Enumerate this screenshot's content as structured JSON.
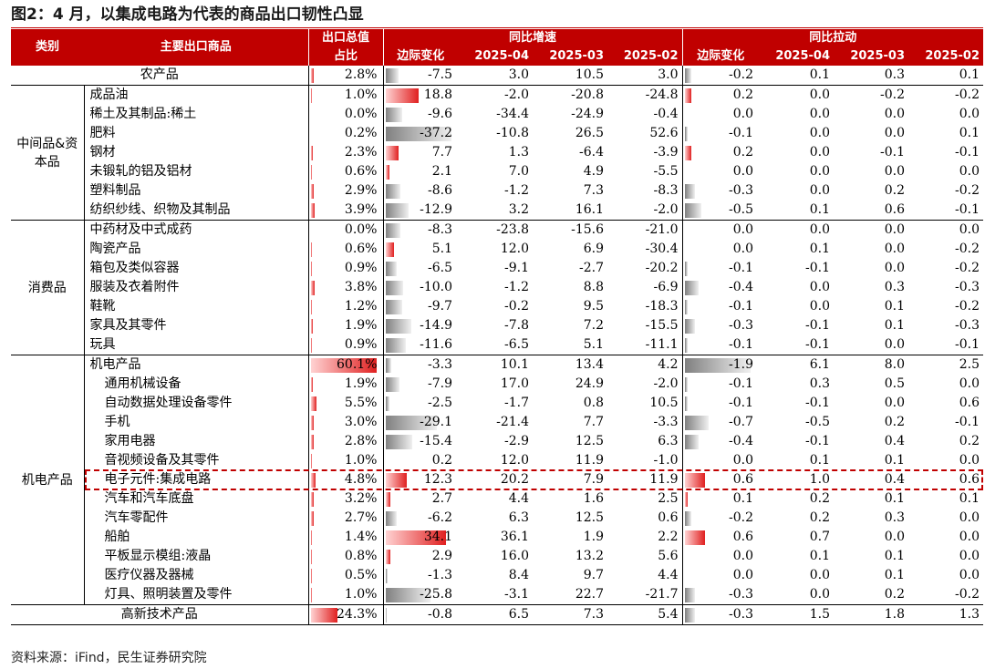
{
  "title": "图2：4 月，以集成电路为代表的商品出口韧性凸显",
  "source": "资料来源：iFind，民生证券研究院",
  "header": {
    "category": "类别",
    "main_goods": "主要出口商品",
    "share_line1": "出口总值",
    "share_line2": "占比",
    "yoy_growth": "同比增速",
    "yoy_contrib": "同比拉动",
    "marginal_change": "边际变化",
    "months": [
      "2025-04",
      "2025-03",
      "2025-02"
    ]
  },
  "bar_scale": {
    "share_max": 60.1,
    "change_max": 37.2,
    "contrib_max": 1.9
  },
  "rows": [
    {
      "name": "农产品",
      "group": null,
      "indent": false,
      "center": true,
      "share": 2.8,
      "share_text": "2.8%",
      "chg": -7.5,
      "chg_text": "-7.5",
      "g04": "3.0",
      "g03": "10.5",
      "g02": "3.0",
      "pchg": -0.2,
      "pchg_text": "-0.2",
      "p04": "0.1",
      "p03": "0.3",
      "p02": "0.1"
    },
    {
      "name": "成品油",
      "indent": false,
      "share": 1.0,
      "share_text": "1.0%",
      "chg": 18.8,
      "chg_text": "18.8",
      "g04": "-2.0",
      "g03": "-20.8",
      "g02": "-24.8",
      "pchg": 0.2,
      "pchg_text": "0.2",
      "p04": "0.0",
      "p03": "-0.2",
      "p02": "-0.2"
    },
    {
      "name": "稀土及其制品:稀土",
      "indent": false,
      "share": 0.0,
      "share_text": "0.0%",
      "chg": -9.6,
      "chg_text": "-9.6",
      "g04": "-34.4",
      "g03": "-24.9",
      "g02": "-0.4",
      "pchg": 0.0,
      "pchg_text": "0.0",
      "p04": "0.0",
      "p03": "0.0",
      "p02": "0.0"
    },
    {
      "name": "肥料",
      "indent": false,
      "share": 0.2,
      "share_text": "0.2%",
      "chg": -37.2,
      "chg_text": "-37.2",
      "g04": "-10.8",
      "g03": "26.5",
      "g02": "52.6",
      "pchg": -0.1,
      "pchg_text": "-0.1",
      "p04": "0.0",
      "p03": "0.0",
      "p02": "0.1"
    },
    {
      "name": "钢材",
      "indent": false,
      "share": 2.3,
      "share_text": "2.3%",
      "chg": 7.7,
      "chg_text": "7.7",
      "g04": "1.3",
      "g03": "-6.4",
      "g02": "-3.9",
      "pchg": 0.2,
      "pchg_text": "0.2",
      "p04": "0.0",
      "p03": "-0.1",
      "p02": "-0.1"
    },
    {
      "name": "未锻轧的铝及铝材",
      "indent": false,
      "share": 0.6,
      "share_text": "0.6%",
      "chg": 2.1,
      "chg_text": "2.1",
      "g04": "7.0",
      "g03": "4.9",
      "g02": "-5.5",
      "pchg": 0.0,
      "pchg_text": "0.0",
      "p04": "0.0",
      "p03": "0.0",
      "p02": "0.0"
    },
    {
      "name": "塑料制品",
      "indent": false,
      "share": 2.9,
      "share_text": "2.9%",
      "chg": -8.6,
      "chg_text": "-8.6",
      "g04": "-1.2",
      "g03": "7.3",
      "g02": "-8.3",
      "pchg": -0.3,
      "pchg_text": "-0.3",
      "p04": "0.0",
      "p03": "0.2",
      "p02": "-0.2"
    },
    {
      "name": "纺织纱线、织物及其制品",
      "indent": false,
      "share": 3.9,
      "share_text": "3.9%",
      "chg": -12.9,
      "chg_text": "-12.9",
      "g04": "3.2",
      "g03": "16.1",
      "g02": "-2.0",
      "pchg": -0.5,
      "pchg_text": "-0.5",
      "p04": "0.1",
      "p03": "0.6",
      "p02": "-0.1"
    },
    {
      "name": "中药材及中式成药",
      "indent": false,
      "share": 0.0,
      "share_text": "0.0%",
      "chg": -8.3,
      "chg_text": "-8.3",
      "g04": "-23.8",
      "g03": "-15.6",
      "g02": "-21.0",
      "pchg": 0.0,
      "pchg_text": "0.0",
      "p04": "0.0",
      "p03": "0.0",
      "p02": "0.0"
    },
    {
      "name": "陶瓷产品",
      "indent": false,
      "share": 0.6,
      "share_text": "0.6%",
      "chg": 5.1,
      "chg_text": "5.1",
      "g04": "12.0",
      "g03": "6.9",
      "g02": "-30.4",
      "pchg": 0.0,
      "pchg_text": "0.0",
      "p04": "0.1",
      "p03": "0.0",
      "p02": "-0.2"
    },
    {
      "name": "箱包及类似容器",
      "indent": false,
      "share": 0.9,
      "share_text": "0.9%",
      "chg": -6.5,
      "chg_text": "-6.5",
      "g04": "-9.1",
      "g03": "-2.7",
      "g02": "-20.2",
      "pchg": -0.1,
      "pchg_text": "-0.1",
      "p04": "-0.1",
      "p03": "0.0",
      "p02": "-0.2"
    },
    {
      "name": "服装及衣着附件",
      "indent": false,
      "share": 3.8,
      "share_text": "3.8%",
      "chg": -10.0,
      "chg_text": "-10.0",
      "g04": "-1.2",
      "g03": "8.8",
      "g02": "-6.9",
      "pchg": -0.4,
      "pchg_text": "-0.4",
      "p04": "0.0",
      "p03": "0.3",
      "p02": "-0.3"
    },
    {
      "name": "鞋靴",
      "indent": false,
      "share": 1.2,
      "share_text": "1.2%",
      "chg": -9.7,
      "chg_text": "-9.7",
      "g04": "-0.2",
      "g03": "9.5",
      "g02": "-18.3",
      "pchg": -0.1,
      "pchg_text": "-0.1",
      "p04": "0.0",
      "p03": "0.1",
      "p02": "-0.2"
    },
    {
      "name": "家具及其零件",
      "indent": false,
      "share": 1.9,
      "share_text": "1.9%",
      "chg": -14.9,
      "chg_text": "-14.9",
      "g04": "-7.8",
      "g03": "7.2",
      "g02": "-15.5",
      "pchg": -0.3,
      "pchg_text": "-0.3",
      "p04": "-0.1",
      "p03": "0.1",
      "p02": "-0.3"
    },
    {
      "name": "玩具",
      "indent": false,
      "share": 0.9,
      "share_text": "0.9%",
      "chg": -11.6,
      "chg_text": "-11.6",
      "g04": "-6.5",
      "g03": "5.1",
      "g02": "-11.1",
      "pchg": -0.1,
      "pchg_text": "-0.1",
      "p04": "-0.1",
      "p03": "0.0",
      "p02": "-0.1"
    },
    {
      "name": "机电产品",
      "indent": false,
      "share": 60.1,
      "share_text": "60.1%",
      "chg": -3.3,
      "chg_text": "-3.3",
      "g04": "10.1",
      "g03": "13.4",
      "g02": "4.2",
      "pchg": -1.9,
      "pchg_text": "-1.9",
      "p04": "6.1",
      "p03": "8.0",
      "p02": "2.5"
    },
    {
      "name": "通用机械设备",
      "indent": true,
      "share": 1.9,
      "share_text": "1.9%",
      "chg": -7.9,
      "chg_text": "-7.9",
      "g04": "17.0",
      "g03": "24.9",
      "g02": "-2.0",
      "pchg": -0.1,
      "pchg_text": "-0.1",
      "p04": "0.3",
      "p03": "0.5",
      "p02": "0.0"
    },
    {
      "name": "自动数据处理设备零件",
      "indent": true,
      "share": 5.5,
      "share_text": "5.5%",
      "chg": -2.5,
      "chg_text": "-2.5",
      "g04": "-1.7",
      "g03": "0.8",
      "g02": "10.5",
      "pchg": -0.1,
      "pchg_text": "-0.1",
      "p04": "-0.1",
      "p03": "0.0",
      "p02": "0.6"
    },
    {
      "name": "手机",
      "indent": true,
      "share": 3.0,
      "share_text": "3.0%",
      "chg": -29.1,
      "chg_text": "-29.1",
      "g04": "-21.4",
      "g03": "7.7",
      "g02": "-3.3",
      "pchg": -0.7,
      "pchg_text": "-0.7",
      "p04": "-0.5",
      "p03": "0.2",
      "p02": "-0.1"
    },
    {
      "name": "家用电器",
      "indent": true,
      "share": 2.8,
      "share_text": "2.8%",
      "chg": -15.4,
      "chg_text": "-15.4",
      "g04": "-2.9",
      "g03": "12.5",
      "g02": "6.3",
      "pchg": -0.4,
      "pchg_text": "-0.4",
      "p04": "-0.1",
      "p03": "0.4",
      "p02": "0.2"
    },
    {
      "name": "音视频设备及其零件",
      "indent": true,
      "share": 1.0,
      "share_text": "1.0%",
      "chg": 0.2,
      "chg_text": "0.2",
      "g04": "12.0",
      "g03": "11.9",
      "g02": "-1.0",
      "pchg": 0.0,
      "pchg_text": "0.0",
      "p04": "0.1",
      "p03": "0.1",
      "p02": "0.0"
    },
    {
      "name": "电子元件:集成电路",
      "indent": true,
      "share": 4.8,
      "share_text": "4.8%",
      "chg": 12.3,
      "chg_text": "12.3",
      "g04": "20.2",
      "g03": "7.9",
      "g02": "11.9",
      "pchg": 0.6,
      "pchg_text": "0.6",
      "p04": "1.0",
      "p03": "0.4",
      "p02": "0.6",
      "highlight": true
    },
    {
      "name": "汽车和汽车底盘",
      "indent": true,
      "share": 3.2,
      "share_text": "3.2%",
      "chg": 2.7,
      "chg_text": "2.7",
      "g04": "4.4",
      "g03": "1.6",
      "g02": "2.5",
      "pchg": 0.1,
      "pchg_text": "0.1",
      "p04": "0.2",
      "p03": "0.1",
      "p02": "0.1"
    },
    {
      "name": "汽车零配件",
      "indent": true,
      "share": 2.7,
      "share_text": "2.7%",
      "chg": -6.2,
      "chg_text": "-6.2",
      "g04": "6.3",
      "g03": "12.5",
      "g02": "0.6",
      "pchg": -0.2,
      "pchg_text": "-0.2",
      "p04": "0.2",
      "p03": "0.3",
      "p02": "0.0"
    },
    {
      "name": "船舶",
      "indent": true,
      "share": 1.4,
      "share_text": "1.4%",
      "chg": 34.1,
      "chg_text": "34.1",
      "g04": "36.1",
      "g03": "1.9",
      "g02": "2.2",
      "pchg": 0.6,
      "pchg_text": "0.6",
      "p04": "0.7",
      "p03": "0.0",
      "p02": "0.0"
    },
    {
      "name": "平板显示模组:液晶",
      "indent": true,
      "share": 0.8,
      "share_text": "0.8%",
      "chg": 2.9,
      "chg_text": "2.9",
      "g04": "16.0",
      "g03": "13.2",
      "g02": "5.6",
      "pchg": 0.0,
      "pchg_text": "0.0",
      "p04": "0.1",
      "p03": "0.1",
      "p02": "0.0"
    },
    {
      "name": "医疗仪器及器械",
      "indent": true,
      "share": 0.5,
      "share_text": "0.5%",
      "chg": -1.3,
      "chg_text": "-1.3",
      "g04": "8.4",
      "g03": "9.7",
      "g02": "4.4",
      "pchg": 0.0,
      "pchg_text": "0.0",
      "p04": "0.0",
      "p03": "0.1",
      "p02": "0.0"
    },
    {
      "name": "灯具、照明装置及零件",
      "indent": true,
      "share": 1.0,
      "share_text": "1.0%",
      "chg": -25.8,
      "chg_text": "-25.8",
      "g04": "-3.1",
      "g03": "22.7",
      "g02": "-21.7",
      "pchg": -0.3,
      "pchg_text": "-0.3",
      "p04": "0.0",
      "p03": "0.2",
      "p02": "-0.2"
    },
    {
      "name": "高新技术产品",
      "indent": false,
      "center": true,
      "share": 24.3,
      "share_text": "24.3%",
      "chg": -0.8,
      "chg_text": "-0.8",
      "g04": "6.5",
      "g03": "7.3",
      "g02": "5.4",
      "pchg": -0.3,
      "pchg_text": "-0.3",
      "p04": "1.5",
      "p03": "1.8",
      "p02": "1.3"
    }
  ],
  "groups": [
    {
      "label": "中间品&资本品",
      "start": 1,
      "span": 7
    },
    {
      "label": "消费品",
      "start": 8,
      "span": 7
    },
    {
      "label": "机电产品",
      "start": 15,
      "span": 13
    }
  ],
  "colors": {
    "header_bg": "#c00000",
    "positive_bar": "#e02020",
    "negative_bar": "#808080",
    "highlight_border": "#c00000"
  }
}
